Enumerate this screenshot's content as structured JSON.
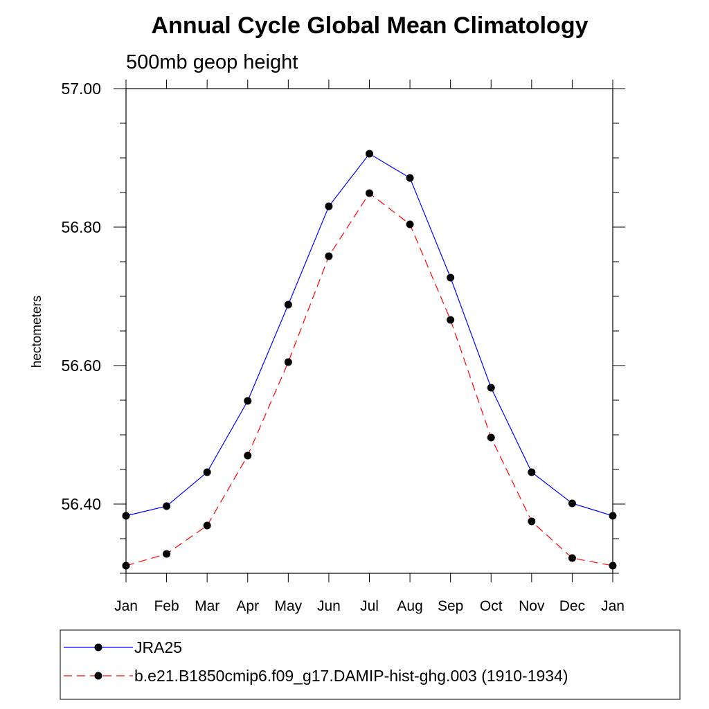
{
  "chart_data": {
    "type": "line",
    "title": "Annual Cycle Global Mean Climatology",
    "subtitle": "500mb geop height",
    "xlabel": "",
    "ylabel": "hectometers",
    "categories": [
      "Jan",
      "Feb",
      "Mar",
      "Apr",
      "May",
      "Jun",
      "Jul",
      "Aug",
      "Sep",
      "Oct",
      "Nov",
      "Dec",
      "Jan"
    ],
    "ylim": [
      56.3,
      57.0
    ],
    "yticks": [
      56.4,
      56.6,
      56.8,
      57.0
    ],
    "ytick_labels": [
      "56.40",
      "56.60",
      "56.80",
      "57.00"
    ],
    "grid": false,
    "legend_position": "bottom",
    "series": [
      {
        "name": "JRA25",
        "color": "#0000ff",
        "style": "solid",
        "values": [
          56.383,
          56.397,
          56.446,
          56.549,
          56.688,
          56.83,
          56.906,
          56.871,
          56.727,
          56.568,
          56.446,
          56.401,
          56.383
        ]
      },
      {
        "name": "b.e21.B1850cmip6.f09_g17.DAMIP-hist-ghg.003 (1910-1934)",
        "color": "#ff0000",
        "style": "dashed",
        "values": [
          56.311,
          56.328,
          56.369,
          56.47,
          56.605,
          56.758,
          56.849,
          56.804,
          56.666,
          56.496,
          56.375,
          56.322,
          56.311
        ]
      }
    ]
  }
}
